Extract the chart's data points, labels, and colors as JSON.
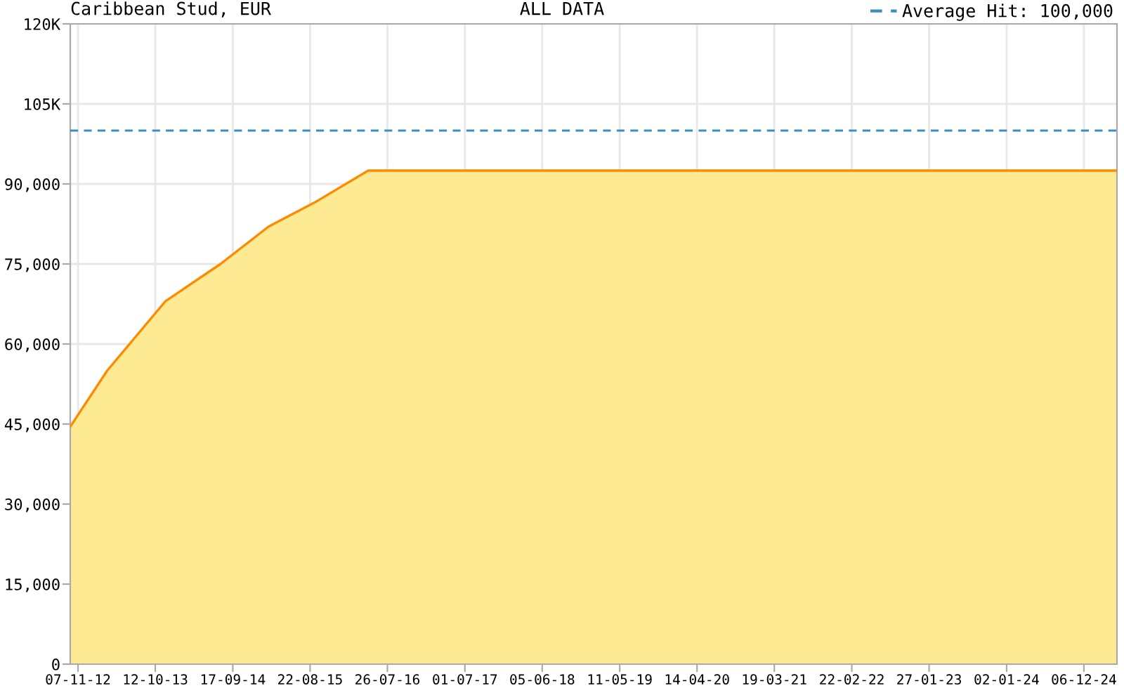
{
  "chart_data": {
    "type": "area",
    "title": "Caribbean Stud, EUR",
    "subtitle": "ALL DATA",
    "x": [
      "2012-10-04",
      "2013-03-15",
      "2013-11-25",
      "2014-07-25",
      "2015-02-21",
      "2015-09-10",
      "2016-05-03",
      "2025-04-30"
    ],
    "series": [
      {
        "color": "#feea93",
        "values": [
          44500,
          55000,
          68000,
          75000,
          82000,
          86500,
          92500,
          92500
        ]
      }
    ],
    "xlim": [
      "2012-10-04",
      "2025-04-30"
    ],
    "xticks": [
      {
        "value": "2012-11-07",
        "label": "07-11-12"
      },
      {
        "value": "2013-10-12",
        "label": "12-10-13"
      },
      {
        "value": "2014-09-17",
        "label": "17-09-14"
      },
      {
        "value": "2015-08-22",
        "label": "22-08-15"
      },
      {
        "value": "2016-07-26",
        "label": "26-07-16"
      },
      {
        "value": "2017-07-01",
        "label": "01-07-17"
      },
      {
        "value": "2018-06-05",
        "label": "05-06-18"
      },
      {
        "value": "2019-05-11",
        "label": "11-05-19"
      },
      {
        "value": "2020-04-14",
        "label": "14-04-20"
      },
      {
        "value": "2021-03-19",
        "label": "19-03-21"
      },
      {
        "value": "2022-02-22",
        "label": "22-02-22"
      },
      {
        "value": "2023-01-27",
        "label": "27-01-23"
      },
      {
        "value": "2024-01-02",
        "label": "02-01-24"
      },
      {
        "value": "2024-12-06",
        "label": "06-12-24"
      }
    ],
    "ylim": [
      0,
      120000
    ],
    "yticks": [
      0,
      {
        "value": 15000,
        "label": "15,000"
      },
      {
        "value": 30000,
        "label": "30,000"
      },
      {
        "value": 45000,
        "label": "45,000"
      },
      {
        "value": 60000,
        "label": "60,000"
      },
      {
        "value": 75000,
        "label": "75,000"
      },
      {
        "value": 90000,
        "label": "90,000"
      },
      {
        "value": 105000,
        "label": "105K"
      },
      {
        "value": 120000,
        "label": "120K"
      }
    ],
    "ref_lines": [
      {
        "axis": "y",
        "value": 100000,
        "label": "Average Hit: 100,000",
        "color": "#3a8fc0",
        "line_style": "dashed"
      }
    ],
    "grid": true
  }
}
